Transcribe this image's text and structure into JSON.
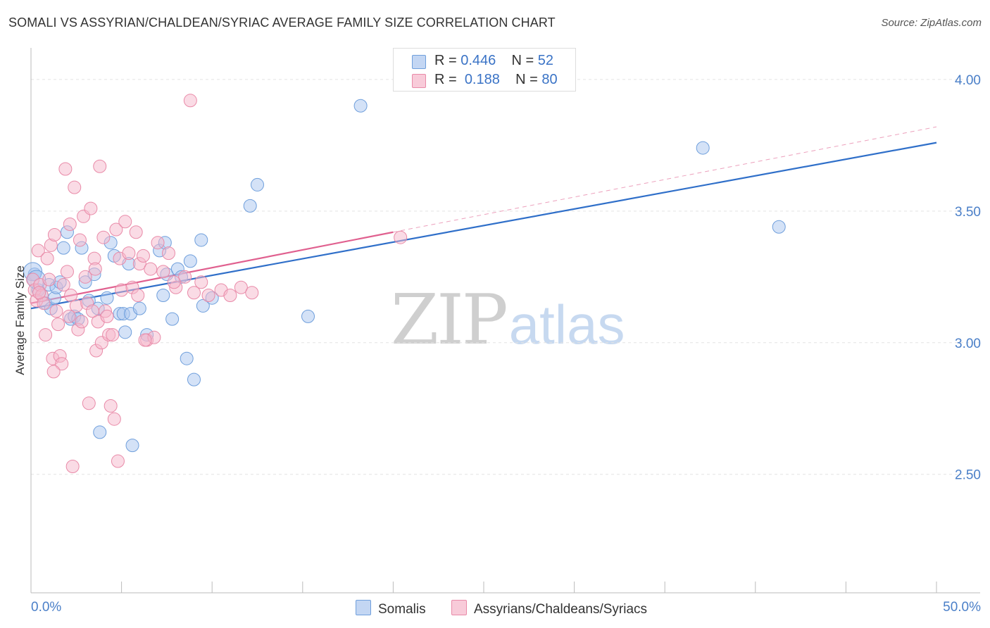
{
  "header": {
    "title": "SOMALI VS ASSYRIAN/CHALDEAN/SYRIAC AVERAGE FAMILY SIZE CORRELATION CHART",
    "source": "Source: ZipAtlas.com"
  },
  "watermark": {
    "zip": "ZIP",
    "atlas": "atlas"
  },
  "legend": {
    "rows": [
      {
        "r_label": "R =",
        "r_value": "0.446",
        "n_label": "N =",
        "n_value": "52"
      },
      {
        "r_label": "R =",
        "r_value": "0.188",
        "n_label": "N =",
        "n_value": "80"
      }
    ]
  },
  "bottom_legend": {
    "somalis": "Somalis",
    "assyrians": "Assyrians/Chaldeans/Syriacs"
  },
  "colors": {
    "somali_fill": "#a9c6ef",
    "somali_stroke": "#6f9fdc",
    "somali_line": "#2f6fc9",
    "assyrian_fill": "#f6b7cb",
    "assyrian_stroke": "#e98aa8",
    "assyrian_line": "#e0608f",
    "grid": "#e4e4e4",
    "axis": "#bbbbbb",
    "tick_label": "#4a7fc8"
  },
  "chart_data": {
    "type": "scatter",
    "title": "SOMALI VS ASSYRIAN/CHALDEAN/SYRIAC AVERAGE FAMILY SIZE CORRELATION CHART",
    "ylabel": "Average Family Size",
    "xlim": [
      0,
      50
    ],
    "ylim": [
      2.05,
      4.12
    ],
    "x_tick_labels": [
      "0.0%",
      "50.0%"
    ],
    "y_ticks": [
      2.5,
      3.0,
      3.5,
      4.0
    ],
    "y_tick_labels": [
      "2.50",
      "3.00",
      "3.50",
      "4.00"
    ],
    "grid": true,
    "legend_position": "top-center",
    "series": [
      {
        "name": "Somalis",
        "r": 0.446,
        "n": 52,
        "trend": {
          "x": [
            0,
            50
          ],
          "y": [
            3.13,
            3.76
          ]
        },
        "points": [
          [
            0.2,
            3.26
          ],
          [
            0.4,
            3.2
          ],
          [
            0.6,
            3.18
          ],
          [
            0.8,
            3.15
          ],
          [
            1.0,
            3.22
          ],
          [
            1.1,
            3.13
          ],
          [
            1.3,
            3.17
          ],
          [
            1.4,
            3.21
          ],
          [
            1.6,
            3.23
          ],
          [
            1.8,
            3.36
          ],
          [
            2.0,
            3.42
          ],
          [
            2.2,
            3.09
          ],
          [
            2.4,
            3.1
          ],
          [
            2.6,
            3.09
          ],
          [
            2.8,
            3.36
          ],
          [
            3.0,
            3.23
          ],
          [
            3.2,
            3.16
          ],
          [
            3.5,
            3.26
          ],
          [
            3.7,
            3.13
          ],
          [
            3.8,
            2.66
          ],
          [
            4.2,
            3.17
          ],
          [
            4.4,
            3.38
          ],
          [
            4.6,
            3.33
          ],
          [
            4.9,
            3.11
          ],
          [
            5.1,
            3.11
          ],
          [
            5.2,
            3.04
          ],
          [
            5.4,
            3.3
          ],
          [
            5.5,
            3.11
          ],
          [
            5.6,
            2.61
          ],
          [
            6.0,
            3.13
          ],
          [
            6.4,
            3.03
          ],
          [
            7.1,
            3.35
          ],
          [
            7.3,
            3.18
          ],
          [
            7.4,
            3.38
          ],
          [
            7.5,
            3.26
          ],
          [
            7.8,
            3.09
          ],
          [
            8.1,
            3.28
          ],
          [
            8.3,
            3.25
          ],
          [
            8.6,
            2.94
          ],
          [
            8.8,
            3.31
          ],
          [
            9.0,
            2.86
          ],
          [
            9.4,
            3.39
          ],
          [
            9.5,
            3.14
          ],
          [
            10.0,
            3.17
          ],
          [
            12.1,
            3.52
          ],
          [
            12.5,
            3.6
          ],
          [
            15.3,
            3.1
          ],
          [
            18.2,
            3.9
          ],
          [
            37.1,
            3.74
          ],
          [
            41.3,
            3.44
          ],
          [
            0.1,
            3.27
          ],
          [
            0.3,
            3.24
          ]
        ]
      },
      {
        "name": "Assyrians/Chaldeans/Syriacs",
        "r": 0.188,
        "n": 80,
        "trend": {
          "x": [
            0,
            20
          ],
          "y": [
            3.15,
            3.42
          ]
        },
        "trend_extension": {
          "x": [
            20,
            50
          ],
          "y": [
            3.42,
            3.82
          ]
        },
        "points": [
          [
            0.1,
            3.24
          ],
          [
            0.2,
            3.2
          ],
          [
            0.3,
            3.16
          ],
          [
            0.4,
            3.35
          ],
          [
            0.5,
            3.22
          ],
          [
            0.6,
            3.18
          ],
          [
            0.7,
            3.15
          ],
          [
            0.8,
            3.03
          ],
          [
            0.9,
            3.32
          ],
          [
            1.0,
            3.24
          ],
          [
            1.1,
            3.37
          ],
          [
            1.2,
            2.94
          ],
          [
            1.3,
            3.41
          ],
          [
            1.4,
            3.12
          ],
          [
            1.5,
            3.07
          ],
          [
            1.6,
            2.95
          ],
          [
            1.7,
            2.92
          ],
          [
            1.8,
            3.22
          ],
          [
            1.9,
            3.66
          ],
          [
            2.0,
            3.27
          ],
          [
            2.1,
            3.1
          ],
          [
            2.2,
            3.18
          ],
          [
            2.3,
            2.53
          ],
          [
            2.4,
            3.59
          ],
          [
            2.5,
            3.14
          ],
          [
            2.6,
            3.05
          ],
          [
            2.7,
            3.39
          ],
          [
            2.8,
            3.08
          ],
          [
            2.9,
            3.48
          ],
          [
            3.0,
            3.25
          ],
          [
            3.1,
            3.15
          ],
          [
            3.2,
            2.77
          ],
          [
            3.3,
            3.51
          ],
          [
            3.4,
            3.12
          ],
          [
            3.5,
            3.32
          ],
          [
            3.6,
            2.97
          ],
          [
            3.7,
            3.08
          ],
          [
            3.8,
            3.67
          ],
          [
            3.9,
            3.0
          ],
          [
            4.0,
            3.4
          ],
          [
            4.1,
            3.12
          ],
          [
            4.2,
            3.1
          ],
          [
            4.3,
            3.03
          ],
          [
            4.4,
            2.76
          ],
          [
            4.5,
            3.03
          ],
          [
            4.6,
            2.71
          ],
          [
            4.7,
            3.43
          ],
          [
            4.8,
            2.55
          ],
          [
            4.9,
            3.32
          ],
          [
            5.0,
            3.2
          ],
          [
            5.2,
            3.46
          ],
          [
            5.4,
            3.34
          ],
          [
            5.6,
            3.21
          ],
          [
            5.8,
            3.42
          ],
          [
            6.0,
            3.3
          ],
          [
            6.2,
            3.33
          ],
          [
            6.4,
            3.01
          ],
          [
            6.6,
            3.28
          ],
          [
            6.8,
            3.02
          ],
          [
            7.0,
            3.38
          ],
          [
            7.3,
            3.27
          ],
          [
            7.6,
            3.34
          ],
          [
            8.0,
            3.21
          ],
          [
            8.5,
            3.25
          ],
          [
            9.0,
            3.19
          ],
          [
            9.4,
            3.23
          ],
          [
            9.8,
            3.18
          ],
          [
            10.5,
            3.2
          ],
          [
            11.0,
            3.18
          ],
          [
            11.6,
            3.21
          ],
          [
            12.2,
            3.19
          ],
          [
            20.4,
            3.4
          ],
          [
            8.8,
            3.92
          ],
          [
            1.25,
            2.89
          ],
          [
            2.15,
            3.45
          ],
          [
            3.55,
            3.28
          ],
          [
            5.9,
            3.18
          ],
          [
            6.3,
            3.01
          ],
          [
            7.9,
            3.23
          ],
          [
            0.45,
            3.19
          ]
        ]
      }
    ]
  }
}
